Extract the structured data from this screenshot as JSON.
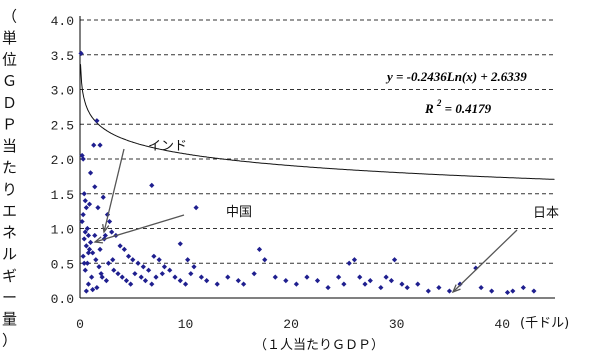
{
  "chart_data": {
    "type": "scatter",
    "xlabel": "（１人当たりＧＤＰ）",
    "xunit": "(千ドル)",
    "ylabel": "（単位ＧＤＰ当たりエネルギー量）",
    "xlim": [
      0,
      45
    ],
    "ylim": [
      0,
      4.0
    ],
    "x_ticks": [
      "0",
      "10",
      "20",
      "30",
      "40"
    ],
    "y_ticks": [
      "0.0",
      "0.5",
      "1.0",
      "1.5",
      "2.0",
      "2.5",
      "3.0",
      "3.5",
      "4.0"
    ],
    "grid": "horizontal-dashed",
    "marker_color": "#1f1f8f",
    "trendline": {
      "type": "logarithmic",
      "slope": -0.2436,
      "intercept": 2.6339,
      "equation": "y = -0.2436Ln(x) + 2.6339",
      "r2_label": "R",
      "r2_sup": "2",
      "r2_value": " = 0.4179"
    },
    "annotations": [
      {
        "label": "インド",
        "x": 0.5,
        "y": 0.85
      },
      {
        "label": "中国",
        "x": 1.3,
        "y": 0.75
      },
      {
        "label": "日本",
        "x": 40.5,
        "y": 0.08
      }
    ],
    "points": [
      [
        0.1,
        3.52
      ],
      [
        0.2,
        2.05
      ],
      [
        0.3,
        2.0
      ],
      [
        0.4,
        1.5
      ],
      [
        0.5,
        1.4
      ],
      [
        0.6,
        1.3
      ],
      [
        0.3,
        1.2
      ],
      [
        0.2,
        1.1
      ],
      [
        0.7,
        1.0
      ],
      [
        0.5,
        0.95
      ],
      [
        0.8,
        0.9
      ],
      [
        0.4,
        0.85
      ],
      [
        1.0,
        0.8
      ],
      [
        0.6,
        0.75
      ],
      [
        0.9,
        0.7
      ],
      [
        1.2,
        0.65
      ],
      [
        0.3,
        0.6
      ],
      [
        1.5,
        0.55
      ],
      [
        0.7,
        0.5
      ],
      [
        1.8,
        0.45
      ],
      [
        0.5,
        0.4
      ],
      [
        2.0,
        0.35
      ],
      [
        1.1,
        0.3
      ],
      [
        2.5,
        0.25
      ],
      [
        0.8,
        0.2
      ],
      [
        1.3,
        2.2
      ],
      [
        1.9,
        2.2
      ],
      [
        1.6,
        2.55
      ],
      [
        1.0,
        1.8
      ],
      [
        1.4,
        1.6
      ],
      [
        2.2,
        1.45
      ],
      [
        2.6,
        1.2
      ],
      [
        1.7,
        1.3
      ],
      [
        0.9,
        1.35
      ],
      [
        2.8,
        1.1
      ],
      [
        3.0,
        0.95
      ],
      [
        3.4,
        0.9
      ],
      [
        2.3,
        0.85
      ],
      [
        3.8,
        0.75
      ],
      [
        4.2,
        0.7
      ],
      [
        4.6,
        0.6
      ],
      [
        5.0,
        0.55
      ],
      [
        5.5,
        0.5
      ],
      [
        6.0,
        0.45
      ],
      [
        6.5,
        0.4
      ],
      [
        7.0,
        0.6
      ],
      [
        7.5,
        0.55
      ],
      [
        8.0,
        0.45
      ],
      [
        3.2,
        0.4
      ],
      [
        3.6,
        0.35
      ],
      [
        4.0,
        0.3
      ],
      [
        4.4,
        0.25
      ],
      [
        4.8,
        0.2
      ],
      [
        5.2,
        0.35
      ],
      [
        5.8,
        0.3
      ],
      [
        6.2,
        0.25
      ],
      [
        6.8,
        0.2
      ],
      [
        7.2,
        0.3
      ],
      [
        7.8,
        0.35
      ],
      [
        8.5,
        0.4
      ],
      [
        9.0,
        0.3
      ],
      [
        9.5,
        0.25
      ],
      [
        10.0,
        0.2
      ],
      [
        10.5,
        0.35
      ],
      [
        11.0,
        1.3
      ],
      [
        6.8,
        1.62
      ],
      [
        9.5,
        0.78
      ],
      [
        10.2,
        0.55
      ],
      [
        10.8,
        0.45
      ],
      [
        11.5,
        0.3
      ],
      [
        12.0,
        0.25
      ],
      [
        13.0,
        0.2
      ],
      [
        14.0,
        0.3
      ],
      [
        15.0,
        0.25
      ],
      [
        15.5,
        0.2
      ],
      [
        16.5,
        0.35
      ],
      [
        17.0,
        0.7
      ],
      [
        17.5,
        0.55
      ],
      [
        18.5,
        0.3
      ],
      [
        19.5,
        0.25
      ],
      [
        20.5,
        0.2
      ],
      [
        21.5,
        0.3
      ],
      [
        22.5,
        0.25
      ],
      [
        23.5,
        0.15
      ],
      [
        24.5,
        0.3
      ],
      [
        25.0,
        0.2
      ],
      [
        25.5,
        0.5
      ],
      [
        26.0,
        0.55
      ],
      [
        26.5,
        0.3
      ],
      [
        27.0,
        0.2
      ],
      [
        27.5,
        0.25
      ],
      [
        28.5,
        0.15
      ],
      [
        29.0,
        0.3
      ],
      [
        29.5,
        0.25
      ],
      [
        29.8,
        0.55
      ],
      [
        30.5,
        0.2
      ],
      [
        31.0,
        0.15
      ],
      [
        32.0,
        0.2
      ],
      [
        33.0,
        0.1
      ],
      [
        34.0,
        0.15
      ],
      [
        35.0,
        0.1
      ],
      [
        36.0,
        0.2
      ],
      [
        37.5,
        0.43
      ],
      [
        38.0,
        0.15
      ],
      [
        39.0,
        0.1
      ],
      [
        40.5,
        0.08
      ],
      [
        41.0,
        0.1
      ],
      [
        42.0,
        0.15
      ],
      [
        43.0,
        0.1
      ],
      [
        2.1,
        0.3
      ],
      [
        2.7,
        0.5
      ],
      [
        3.1,
        0.55
      ],
      [
        1.6,
        0.15
      ],
      [
        0.6,
        0.1
      ],
      [
        1.2,
        0.12
      ],
      [
        1.9,
        0.7
      ],
      [
        2.4,
        0.9
      ],
      [
        0.4,
        0.5
      ],
      [
        0.8,
        0.65
      ],
      [
        1.4,
        0.9
      ]
    ]
  }
}
